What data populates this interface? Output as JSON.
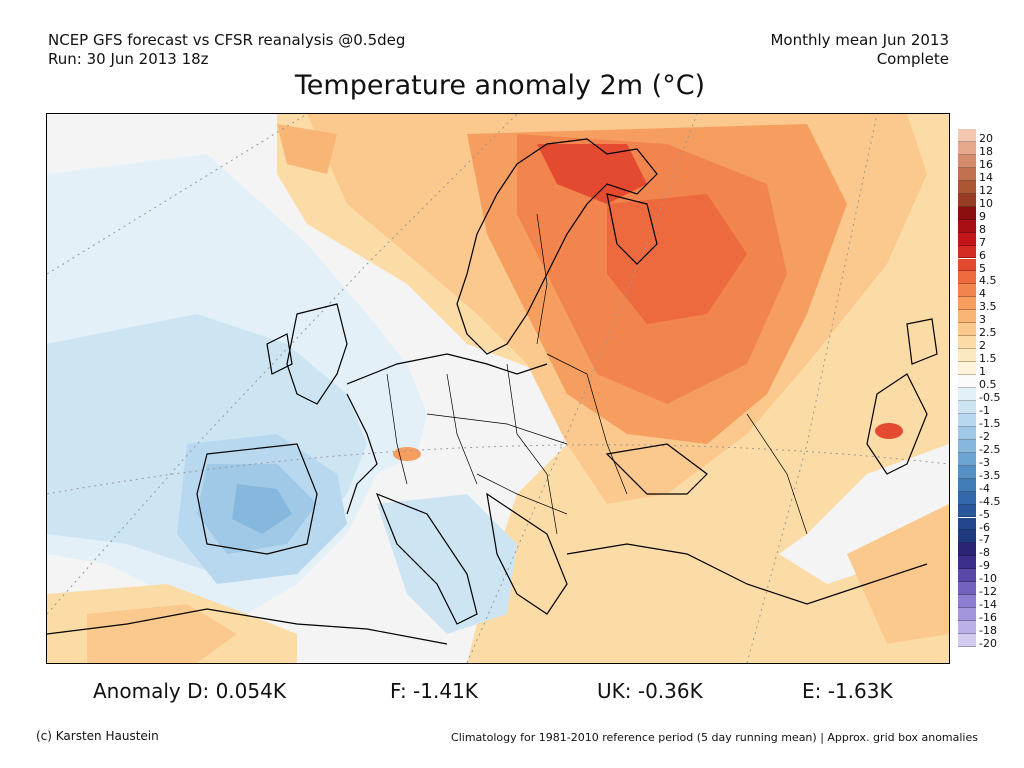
{
  "header": {
    "line1_left": "NCEP GFS forecast vs CFSR reanalysis @0.5deg",
    "line2_left": "Run: 30 Jun 2013 18z",
    "line1_right": "Monthly mean Jun 2013",
    "line2_right": "Complete"
  },
  "title": "Temperature anomaly 2m (°C)",
  "colorbar": {
    "labels": [
      "20",
      "18",
      "16",
      "14",
      "12",
      "10",
      "9",
      "8",
      "7",
      "6",
      "5",
      "4.5",
      "4",
      "3.5",
      "3",
      "2.5",
      "2",
      "1.5",
      "1",
      "0.5",
      "-0.5",
      "-1",
      "-1.5",
      "-2",
      "-2.5",
      "-3",
      "-3.5",
      "-4",
      "-4.5",
      "-5",
      "-6",
      "-7",
      "-8",
      "-9",
      "-10",
      "-12",
      "-14",
      "-16",
      "-18",
      "-20"
    ],
    "colors": [
      "#f4c7b1",
      "#e6a98c",
      "#d48c6c",
      "#c1714f",
      "#ad5636",
      "#973d24",
      "#8b0f10",
      "#a80f14",
      "#c4151a",
      "#d62b22",
      "#e34a2f",
      "#ec6a3d",
      "#f2854e",
      "#f59e60",
      "#f8b575",
      "#fbc98d",
      "#fcdca6",
      "#fde9bf",
      "#fff3da",
      "#fafafa",
      "#e3f0f8",
      "#cde4f3",
      "#b7d8ee",
      "#9fc9e6",
      "#86b7dc",
      "#6ea4d1",
      "#5790c5",
      "#437db8",
      "#3369ab",
      "#2a579c",
      "#23478d",
      "#1f3a7f",
      "#2b2475",
      "#3b2e8a",
      "#5a48a6",
      "#7562bd",
      "#8d7ccf",
      "#a595dd",
      "#bdb0e8",
      "#d4cbf1"
    ]
  },
  "stats": {
    "de": "Anomaly D: 0.054K",
    "fr": "F: -1.41K",
    "uk": "UK: -0.36K",
    "es": "E: -1.63K"
  },
  "footer": {
    "credit": "(c) Karsten Haustein",
    "note": "Climatology for 1981-2010 reference period (5 day running mean) | Approx. grid box anomalies"
  }
}
